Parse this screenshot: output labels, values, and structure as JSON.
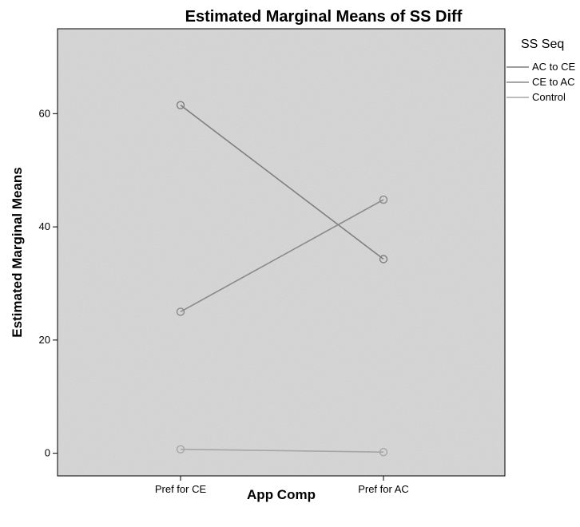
{
  "chart_data": {
    "type": "line",
    "title": "Estimated Marginal Means of SS Diff",
    "xlabel": "App Comp",
    "ylabel": "Estimated Marginal Means",
    "categories": [
      "Pref for CE",
      "Pref for AC"
    ],
    "ylim": [
      -4,
      75
    ],
    "yticks": [
      0,
      20,
      40,
      60
    ],
    "grid": false,
    "legend_title": "SS Seq",
    "legend_position": "right",
    "series": [
      {
        "name": "AC to CE",
        "values": [
          61.5,
          34.3
        ],
        "color": "#7f7f7f"
      },
      {
        "name": "CE to AC",
        "values": [
          25.0,
          44.8
        ],
        "color": "#8a8a8a"
      },
      {
        "name": "Control",
        "values": [
          0.7,
          0.2
        ],
        "color": "#a6a6a6"
      }
    ]
  },
  "colors": {
    "plot_background": "#d6d6d6",
    "frame": "#000000"
  }
}
